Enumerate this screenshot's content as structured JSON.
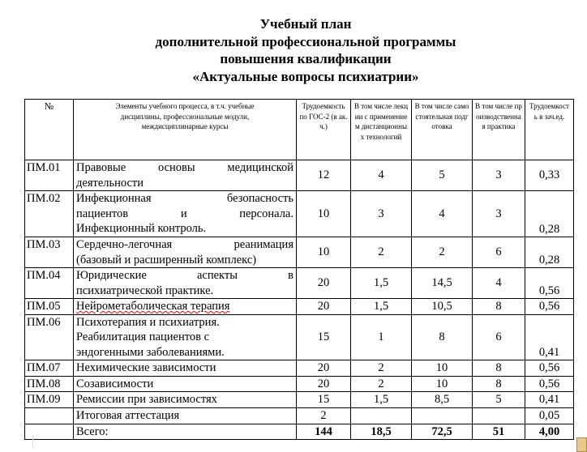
{
  "title": {
    "lines": [
      "Учебный план",
      "дополнительной профессиональной программы",
      "повышения квалификации",
      "«Актуальные вопросы психиатрии»"
    ]
  },
  "table": {
    "headers": [
      "№",
      "Элементы учебного процесса, в т.ч. учебные дисциплины, профессиональные модули, междисциплинарные курсы",
      "Трудоемкость по ГОС-2 (в ак.ч.)",
      "В том числе лекции с применением дистанционных технологий",
      "В том числе самостоятельная подготовка",
      "В том числе производственная практика",
      "Трудоемкость в зач.ед."
    ],
    "rows": [
      {
        "code": "ПМ.01",
        "name_lines": [
          "Правовые основы медицинской",
          "деятельности"
        ],
        "hours": "12",
        "lectures": "4",
        "self": "5",
        "practice": "3",
        "zet": "0,33"
      },
      {
        "code": "ПМ.02",
        "name_lines": [
          "Инфекционная безопасность",
          "пациентов и персонала.",
          "Инфекционный контроль."
        ],
        "hours": "10",
        "lectures": "3",
        "self": "4",
        "practice": "3",
        "zet": "0,28"
      },
      {
        "code": "ПМ.03",
        "name_lines": [
          "Сердечно-легочная реанимация",
          "(базовый и расширенный комплекс)"
        ],
        "hours": "10",
        "lectures": "2",
        "self": "2",
        "practice": "6",
        "zet": "0,28"
      },
      {
        "code": "ПМ.04",
        "name_lines": [
          "Юридические аспекты в",
          "психиатрической практике."
        ],
        "hours": "20",
        "lectures": "1,5",
        "self": "14,5",
        "practice": "4",
        "zet": "0,56"
      },
      {
        "code": "ПМ.05",
        "name_lines": [
          "Нейрометаболическая терапия"
        ],
        "hours": "20",
        "lectures": "1,5",
        "self": "10,5",
        "practice": "8",
        "zet": "0,56"
      },
      {
        "code": "ПМ.06",
        "name_lines": [
          "Психотерапия и психиатрия.",
          "Реабилитация пациентов с",
          "эндогенными заболеваниями."
        ],
        "hours": "15",
        "lectures": "1",
        "self": "8",
        "practice": "6",
        "zet": "0,41"
      },
      {
        "code": "ПМ.07",
        "name_lines": [
          "Нехимические зависимости"
        ],
        "hours": "20",
        "lectures": "2",
        "self": "10",
        "practice": "8",
        "zet": "0,56"
      },
      {
        "code": "ПМ.08",
        "name_lines": [
          "Созависимости"
        ],
        "hours": "20",
        "lectures": "2",
        "self": "10",
        "practice": "8",
        "zet": "0,56"
      },
      {
        "code": "ПМ.09",
        "name_lines": [
          "Ремиссии при зависимостях"
        ],
        "hours": "15",
        "lectures": "1,5",
        "self": "8,5",
        "practice": "5",
        "zet": "0,41"
      },
      {
        "code": "",
        "name_lines": [
          "Итоговая аттестация"
        ],
        "hours": "2",
        "lectures": "",
        "self": "",
        "practice": "",
        "zet": "0,05"
      }
    ],
    "total": {
      "label": "Всего:",
      "hours": "144",
      "lectures": "18,5",
      "self": "72,5",
      "practice": "51",
      "zet": "4,00"
    }
  },
  "icons": {
    "paste_options": "clipboard-paste-icon"
  }
}
